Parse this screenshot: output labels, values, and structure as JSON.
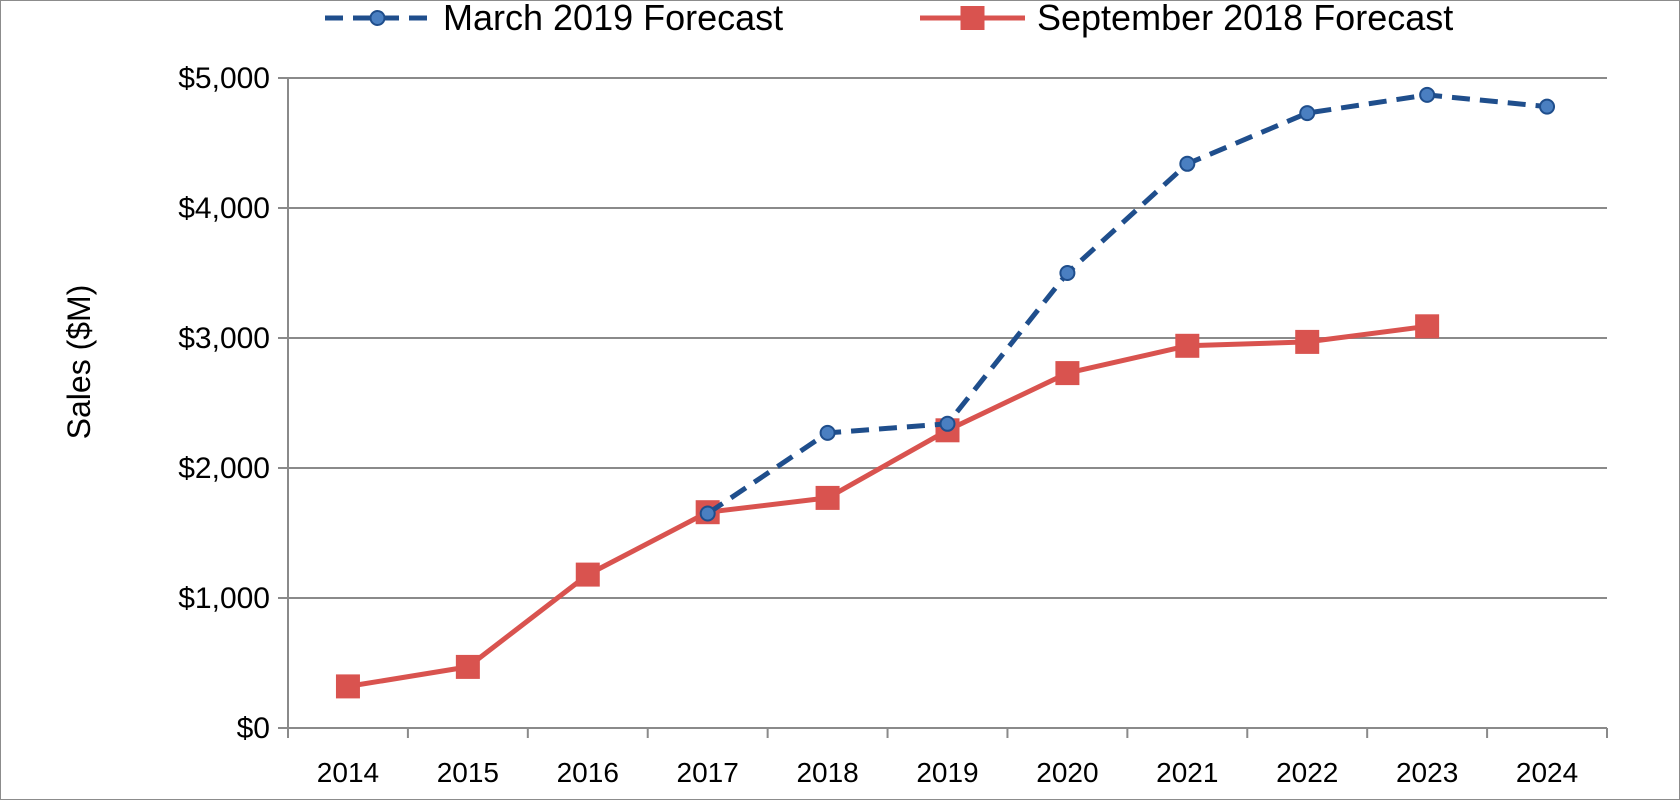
{
  "chart_data": {
    "type": "line",
    "title": "",
    "xlabel": "",
    "ylabel": "Sales ($M)",
    "ylim": [
      0,
      5000
    ],
    "yticks": [
      0,
      1000,
      2000,
      3000,
      4000,
      5000
    ],
    "ytick_labels": [
      "$0",
      "$1,000",
      "$2,000",
      "$3,000",
      "$4,000",
      "$5,000"
    ],
    "categories": [
      "2014",
      "2015",
      "2016",
      "2017",
      "2018",
      "2019",
      "2020",
      "2021",
      "2022",
      "2023",
      "2024"
    ],
    "grid": true,
    "legend_position": "top",
    "series": [
      {
        "name": "March 2019 Forecast",
        "color": "#1f4e8c",
        "style": "dashed",
        "marker": "circle",
        "values": [
          null,
          null,
          null,
          1650,
          2270,
          2340,
          3500,
          4340,
          4730,
          4870,
          4780
        ]
      },
      {
        "name": "September 2018 Forecast",
        "color": "#d9534f",
        "style": "solid",
        "marker": "square",
        "values": [
          320,
          470,
          1180,
          1660,
          1770,
          2290,
          2730,
          2940,
          2970,
          3090,
          null
        ]
      }
    ]
  }
}
